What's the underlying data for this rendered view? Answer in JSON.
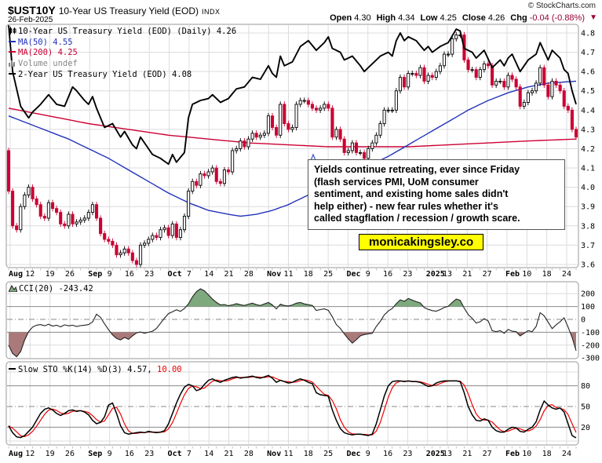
{
  "header": {
    "symbol": "$UST10Y",
    "title": "10-Year US Treasury Yield (EOD)",
    "exchange": "INDX",
    "date": "26-Feb-2025",
    "copyright": "© StockCharts.com",
    "quote": {
      "open_label": "Open",
      "open": "4.30",
      "high_label": "High",
      "high": "4.34",
      "low_label": "Low",
      "low": "4.25",
      "close_label": "Close",
      "close": "4.26",
      "chg_label": "Chg",
      "chg": "-0.04 (-0.88%)",
      "direction": "▼"
    }
  },
  "main_legend": {
    "series": "10-Year US Treasury Yield (EOD) (Daily) 4.26",
    "ma50": "MA(50) 4.55",
    "ma200": "MA(200) 4.25",
    "volume": "Volume undef",
    "overlay": "2-Year US Treasury Yield (EOD) 4.08"
  },
  "cci_legend": "CCI(20) -243.42",
  "sto_legend": {
    "label": "Slow STO %K(14) %D(3) 4.57,",
    "d_value": "10.00"
  },
  "annotation": {
    "lines": [
      "Yields continue retreating, ever since Friday",
      "(flash services PMI, UoM consumer",
      "sentiment, and existing home sales didn't",
      "help either) - new fear rules whether it's",
      "called stagflation / recession / growth scare."
    ],
    "badge": "monicakingsley.co"
  },
  "colors": {
    "candle_up_fill": "#ffffff",
    "candle_up_stroke": "#000000",
    "candle_down": "#cc0033",
    "ma50": "#2233bb",
    "ma200": "#cc0033",
    "line_2y": "#000000",
    "cci_line": "#222222",
    "cci_green_fill": "#7ea87e",
    "cci_red_fill": "#aa7a7a",
    "sto_k": "#000000",
    "sto_d": "#ee0000",
    "grid": "#dcdce0",
    "grid_dark": "#888888",
    "panel_border": "#999999",
    "chg_negative": "#990033",
    "badge_bg": "#ffff00"
  },
  "chart_data": [
    {
      "type": "candlestick",
      "title": "10-Year US Treasury Yield (EOD) Daily with MA(50), MA(200) and 2-Year yield overlay",
      "ylim": [
        3.6,
        4.8
      ],
      "yticks": [
        "4.8",
        "4.7",
        "4.6",
        "4.5",
        "4.4",
        "4.3",
        "4.2",
        "4.1",
        "4.0",
        "3.9",
        "3.8",
        "3.7",
        "3.6"
      ],
      "ytick_values": [
        4.8,
        4.7,
        4.6,
        4.5,
        4.4,
        4.3,
        4.2,
        4.1,
        4.0,
        3.9,
        3.8,
        3.7,
        3.6
      ],
      "x_labels": [
        [
          "Aug",
          1
        ],
        [
          "12",
          0
        ],
        [
          "19",
          0
        ],
        [
          "26",
          0
        ],
        [
          "Sep",
          1
        ],
        [
          "9",
          0
        ],
        [
          "16",
          0
        ],
        [
          "23",
          0
        ],
        [
          "Oct",
          1
        ],
        [
          "7",
          0
        ],
        [
          "14",
          0
        ],
        [
          "21",
          0
        ],
        [
          "28",
          0
        ],
        [
          "Nov",
          1
        ],
        [
          "11",
          0
        ],
        [
          "18",
          0
        ],
        [
          "25",
          0
        ],
        [
          "Dec",
          1
        ],
        [
          "9",
          0
        ],
        [
          "16",
          0
        ],
        [
          "23",
          0
        ],
        [
          "2025",
          1
        ],
        [
          "13",
          0
        ],
        [
          "21",
          0
        ],
        [
          "27",
          0
        ],
        [
          "Feb",
          1
        ],
        [
          "10",
          0
        ],
        [
          "18",
          0
        ],
        [
          "24",
          0
        ]
      ],
      "open_seed": 4.19,
      "closes_10y": [
        3.98,
        3.8,
        3.78,
        3.9,
        3.96,
        4.0,
        3.94,
        3.91,
        3.85,
        3.84,
        3.92,
        3.89,
        3.87,
        3.81,
        3.8,
        3.86,
        3.81,
        3.82,
        3.83,
        3.84,
        3.87,
        3.91,
        3.84,
        3.76,
        3.73,
        3.72,
        3.7,
        3.65,
        3.66,
        3.68,
        3.66,
        3.62,
        3.6,
        3.7,
        3.71,
        3.73,
        3.75,
        3.74,
        3.78,
        3.79,
        3.75,
        3.81,
        3.74,
        3.78,
        3.85,
        3.98,
        4.03,
        4.01,
        4.07,
        4.06,
        4.08,
        4.1,
        4.03,
        4.02,
        4.09,
        4.08,
        4.19,
        4.2,
        4.24,
        4.21,
        4.25,
        4.28,
        4.26,
        4.27,
        4.28,
        4.37,
        4.31,
        4.27,
        4.43,
        4.33,
        4.3,
        4.31,
        4.43,
        4.45,
        4.45,
        4.43,
        4.41,
        4.4,
        4.41,
        4.43,
        4.41,
        4.26,
        4.3,
        4.25,
        4.18,
        4.19,
        4.23,
        4.18,
        4.18,
        4.15,
        4.2,
        4.23,
        4.27,
        4.33,
        4.4,
        4.4,
        4.4,
        4.5,
        4.57,
        4.52,
        4.59,
        4.59,
        4.58,
        4.62,
        4.55,
        4.58,
        4.57,
        4.6,
        4.63,
        4.69,
        4.69,
        4.77,
        4.79,
        4.79,
        4.66,
        4.61,
        4.61,
        4.57,
        4.61,
        4.64,
        4.63,
        4.53,
        4.55,
        4.55,
        4.52,
        4.58,
        4.56,
        4.52,
        4.42,
        4.44,
        4.49,
        4.5,
        4.54,
        4.62,
        4.53,
        4.47,
        4.55,
        4.53,
        4.5,
        4.42,
        4.4,
        4.3,
        4.26
      ],
      "ma50_keypoints": [
        [
          0,
          4.37
        ],
        [
          5,
          4.33
        ],
        [
          10,
          4.29
        ],
        [
          15,
          4.25
        ],
        [
          20,
          4.2
        ],
        [
          25,
          4.15
        ],
        [
          30,
          4.09
        ],
        [
          35,
          4.03
        ],
        [
          40,
          3.97
        ],
        [
          45,
          3.92
        ],
        [
          50,
          3.88
        ],
        [
          55,
          3.86
        ],
        [
          58,
          3.85
        ],
        [
          62,
          3.86
        ],
        [
          66,
          3.88
        ],
        [
          70,
          3.91
        ],
        [
          75,
          3.96
        ],
        [
          80,
          4.02
        ],
        [
          85,
          4.07
        ],
        [
          90,
          4.11
        ],
        [
          95,
          4.16
        ],
        [
          100,
          4.22
        ],
        [
          105,
          4.28
        ],
        [
          110,
          4.34
        ],
        [
          115,
          4.4
        ],
        [
          120,
          4.45
        ],
        [
          125,
          4.49
        ],
        [
          130,
          4.52
        ],
        [
          135,
          4.54
        ],
        [
          142,
          4.55
        ]
      ],
      "ma200_keypoints": [
        [
          0,
          4.41
        ],
        [
          10,
          4.37
        ],
        [
          20,
          4.33
        ],
        [
          30,
          4.3
        ],
        [
          40,
          4.27
        ],
        [
          50,
          4.25
        ],
        [
          60,
          4.23
        ],
        [
          70,
          4.22
        ],
        [
          80,
          4.21
        ],
        [
          90,
          4.21
        ],
        [
          100,
          4.21
        ],
        [
          110,
          4.22
        ],
        [
          120,
          4.23
        ],
        [
          130,
          4.24
        ],
        [
          142,
          4.25
        ]
      ],
      "line2y_keypoints": [
        [
          0,
          4.84
        ],
        [
          1,
          4.6
        ],
        [
          3,
          4.42
        ],
        [
          5,
          4.36
        ],
        [
          6,
          4.39
        ],
        [
          8,
          4.43
        ],
        [
          10,
          4.48
        ],
        [
          12,
          4.43
        ],
        [
          14,
          4.42
        ],
        [
          16,
          4.52
        ],
        [
          17,
          4.5
        ],
        [
          19,
          4.45
        ],
        [
          20,
          4.43
        ],
        [
          21,
          4.47
        ],
        [
          22,
          4.41
        ],
        [
          24,
          4.31
        ],
        [
          26,
          4.33
        ],
        [
          28,
          4.26
        ],
        [
          29,
          4.29
        ],
        [
          31,
          4.22
        ],
        [
          32,
          4.2
        ],
        [
          33,
          4.26
        ],
        [
          35,
          4.2
        ],
        [
          36,
          4.17
        ],
        [
          38,
          4.15
        ],
        [
          40,
          4.12
        ],
        [
          41,
          4.17
        ],
        [
          42,
          4.13
        ],
        [
          44,
          4.18
        ],
        [
          45,
          4.36
        ],
        [
          46,
          4.43
        ],
        [
          48,
          4.45
        ],
        [
          50,
          4.46
        ],
        [
          51,
          4.48
        ],
        [
          53,
          4.44
        ],
        [
          55,
          4.46
        ],
        [
          57,
          4.51
        ],
        [
          59,
          4.52
        ],
        [
          61,
          4.57
        ],
        [
          63,
          4.56
        ],
        [
          65,
          4.63
        ],
        [
          66,
          4.59
        ],
        [
          67,
          4.57
        ],
        [
          68,
          4.68
        ],
        [
          69,
          4.63
        ],
        [
          71,
          4.65
        ],
        [
          73,
          4.73
        ],
        [
          75,
          4.76
        ],
        [
          77,
          4.71
        ],
        [
          79,
          4.75
        ],
        [
          80,
          4.78
        ],
        [
          81,
          4.72
        ],
        [
          83,
          4.7
        ],
        [
          84,
          4.66
        ],
        [
          86,
          4.68
        ],
        [
          88,
          4.63
        ],
        [
          89,
          4.6
        ],
        [
          91,
          4.64
        ],
        [
          93,
          4.68
        ],
        [
          95,
          4.7
        ],
        [
          96,
          4.68
        ],
        [
          97,
          4.76
        ],
        [
          98,
          4.8
        ],
        [
          99,
          4.76
        ],
        [
          100,
          4.78
        ],
        [
          102,
          4.76
        ],
        [
          104,
          4.71
        ],
        [
          105,
          4.73
        ],
        [
          106,
          4.7
        ],
        [
          108,
          4.73
        ],
        [
          110,
          4.75
        ],
        [
          112,
          4.82
        ],
        [
          113,
          4.81
        ],
        [
          114,
          4.72
        ],
        [
          116,
          4.7
        ],
        [
          117,
          4.67
        ],
        [
          119,
          4.71
        ],
        [
          121,
          4.62
        ],
        [
          123,
          4.66
        ],
        [
          124,
          4.63
        ],
        [
          125,
          4.67
        ],
        [
          126,
          4.69
        ],
        [
          128,
          4.6
        ],
        [
          130,
          4.66
        ],
        [
          132,
          4.69
        ],
        [
          133,
          4.75
        ],
        [
          135,
          4.66
        ],
        [
          136,
          4.71
        ],
        [
          138,
          4.67
        ],
        [
          139,
          4.61
        ],
        [
          140,
          4.59
        ],
        [
          141,
          4.5
        ],
        [
          142,
          4.43
        ]
      ]
    },
    {
      "type": "line",
      "title": "CCI(20)",
      "ylim": [
        -300,
        287
      ],
      "yticks": [
        "200",
        "100",
        "0",
        "-100",
        "-200",
        "-300"
      ],
      "ytick_values": [
        200,
        100,
        0,
        -100,
        -200,
        -300
      ],
      "bands": {
        "upper": 100,
        "lower": -100,
        "mid": 0
      },
      "values": [
        -200,
        -265,
        -290,
        -250,
        -160,
        -95,
        -60,
        -45,
        -40,
        -50,
        -38,
        -52,
        -45,
        -58,
        -42,
        -50,
        -45,
        -55,
        -48,
        -45,
        -40,
        -20,
        40,
        15,
        -35,
        -80,
        -120,
        -148,
        -160,
        -140,
        -155,
        -128,
        -105,
        -98,
        -108,
        -100,
        -92,
        -70,
        -30,
        10,
        45,
        60,
        75,
        62,
        85,
        120,
        175,
        215,
        238,
        222,
        190,
        158,
        132,
        112,
        116,
        106,
        112,
        122,
        114,
        108,
        118,
        126,
        114,
        108,
        120,
        132,
        112,
        82,
        118,
        108,
        104,
        112,
        126,
        132,
        120,
        114,
        108,
        70,
        76,
        82,
        70,
        20,
        -40,
        -70,
        -112,
        -152,
        -185,
        -158,
        -128,
        -118,
        -112,
        -108,
        -55,
        -15,
        35,
        65,
        85,
        122,
        152,
        140,
        162,
        150,
        138,
        128,
        92,
        78,
        68,
        64,
        76,
        92,
        102,
        132,
        158,
        148,
        88,
        38,
        8,
        -28,
        -18,
        6,
        -12,
        -88,
        -96,
        -88,
        -108,
        -78,
        -92,
        -96,
        -128,
        -108,
        -88,
        -95,
        -55,
        52,
        28,
        -22,
        -72,
        -42,
        -18,
        12,
        -60,
        -140,
        -243.42
      ]
    },
    {
      "type": "line",
      "title": "Slow Stochastic %K(14) %D(3)",
      "ylim": [
        0,
        120
      ],
      "yticks": [
        "80",
        "50",
        "20"
      ],
      "ytick_values": [
        80,
        50,
        20
      ],
      "bands": {
        "upper": 80,
        "lower": 20,
        "mid": 50
      },
      "k_values": [
        22,
        12,
        6,
        5,
        8,
        14,
        20,
        30,
        40,
        46,
        48,
        45,
        40,
        37,
        40,
        44,
        45,
        43,
        44,
        42,
        38,
        30,
        25,
        27,
        35,
        52,
        55,
        40,
        22,
        12,
        10,
        11,
        12,
        13,
        12,
        14,
        13,
        12,
        13,
        15,
        25,
        40,
        55,
        68,
        78,
        82,
        80,
        73,
        75,
        82,
        88,
        90,
        87,
        85,
        88,
        90,
        92,
        93,
        91,
        92,
        93,
        94,
        92,
        91,
        93,
        95,
        91,
        85,
        88,
        86,
        84,
        85,
        88,
        90,
        88,
        85,
        83,
        70,
        67,
        66,
        65,
        45,
        30,
        18,
        12,
        10,
        9,
        10,
        10,
        9,
        8,
        10,
        25,
        45,
        65,
        80,
        86,
        87,
        87,
        86,
        87,
        86,
        86,
        85,
        82,
        79,
        80,
        84,
        86,
        87,
        87,
        87,
        87,
        86,
        70,
        50,
        38,
        30,
        29,
        32,
        30,
        20,
        15,
        13,
        13,
        17,
        20,
        19,
        14,
        13,
        17,
        20,
        28,
        45,
        58,
        52,
        48,
        46,
        48,
        42,
        25,
        8,
        4.57
      ]
    }
  ]
}
